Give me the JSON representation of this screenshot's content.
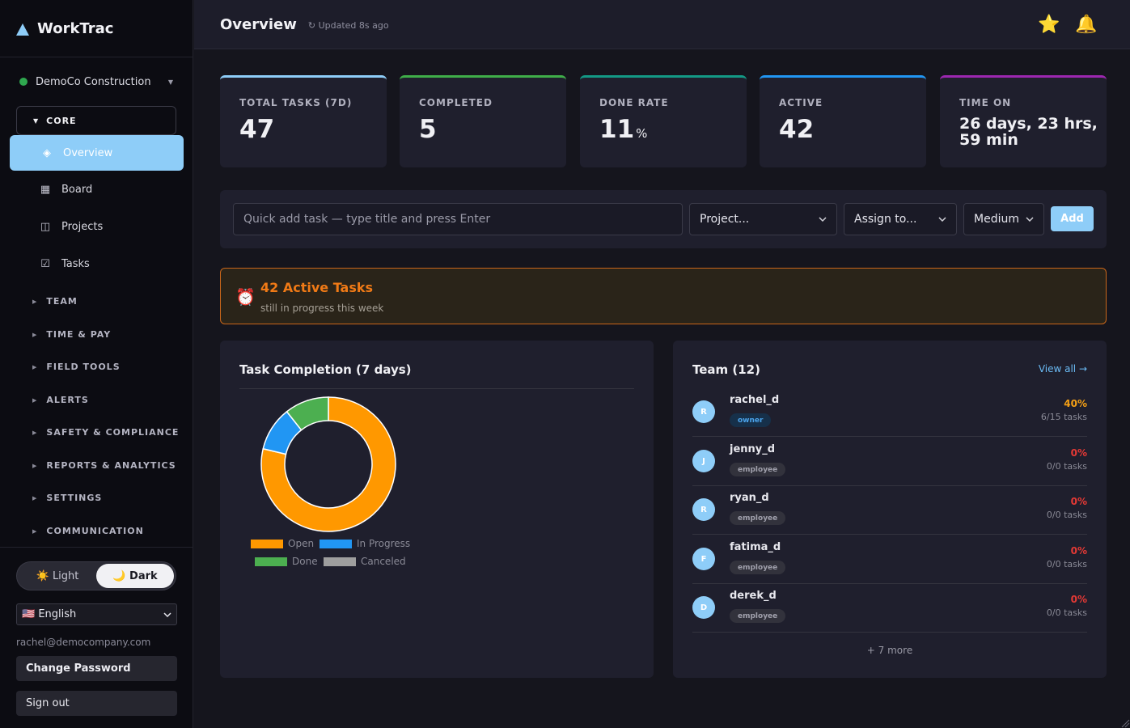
{
  "brand": {
    "name": "WorkTrac"
  },
  "org": {
    "name": "DemoCo Construction",
    "status_color": "#2fa84f"
  },
  "nav": {
    "core_label": "CORE",
    "items": [
      {
        "label": "Overview",
        "icon": "diamond-icon",
        "active": true
      },
      {
        "label": "Board",
        "icon": "grid-icon"
      },
      {
        "label": "Projects",
        "icon": "columns-icon"
      },
      {
        "label": "Tasks",
        "icon": "checkbox-icon"
      }
    ],
    "groups": [
      "TEAM",
      "TIME & PAY",
      "FIELD TOOLS",
      "ALERTS",
      "SAFETY & COMPLIANCE",
      "REPORTS & ANALYTICS",
      "SETTINGS",
      "COMMUNICATION"
    ]
  },
  "theme": {
    "light_label": "Light",
    "dark_label": "Dark",
    "selected": "Dark"
  },
  "language": {
    "selected": "English",
    "flag": "🇺🇸"
  },
  "user": {
    "email": "rachel@democompany.com"
  },
  "account": {
    "change_password": "Change Password",
    "sign_out": "Sign out"
  },
  "header": {
    "title": "Overview",
    "updated": "↻ Updated 8s ago"
  },
  "stats": [
    {
      "label": "TOTAL TASKS (7D)",
      "value": "47",
      "color": "#8ecdf8"
    },
    {
      "label": "COMPLETED",
      "value": "5",
      "color": "#3fae49"
    },
    {
      "label": "DONE RATE",
      "value": "11",
      "unit": "%",
      "color": "#139985"
    },
    {
      "label": "ACTIVE",
      "value": "42",
      "color": "#2196f3"
    },
    {
      "label": "TIME ON",
      "value": "26 days, 23 hrs, 59 min",
      "color": "#9c27b0"
    }
  ],
  "quick_add": {
    "placeholder": "Quick add task — type title and press Enter",
    "project": "Project...",
    "assign": "Assign to...",
    "priority": "Medium",
    "add_label": "Add"
  },
  "alert": {
    "title": "42 Active Tasks",
    "subtitle": "still in progress this week"
  },
  "chart_data": {
    "type": "pie",
    "title": "Task Completion (7 days)",
    "categories": [
      "Open",
      "In Progress",
      "Done",
      "Canceled"
    ],
    "values": [
      37,
      5,
      5,
      0
    ],
    "colors": [
      "#ff9800",
      "#2196f3",
      "#4caf50",
      "#9e9e9e"
    ],
    "legend": "bottom"
  },
  "team": {
    "title": "Team (12)",
    "view_all": "View all →",
    "members": [
      {
        "initial": "R",
        "name": "rachel_d",
        "role": "owner",
        "pct": "40%",
        "tasks": "6/15 tasks",
        "pct_color": "#f5a015"
      },
      {
        "initial": "J",
        "name": "jenny_d",
        "role": "employee",
        "pct": "0%",
        "tasks": "0/0 tasks",
        "pct_color": "#e53935"
      },
      {
        "initial": "R",
        "name": "ryan_d",
        "role": "employee",
        "pct": "0%",
        "tasks": "0/0 tasks",
        "pct_color": "#e53935"
      },
      {
        "initial": "F",
        "name": "fatima_d",
        "role": "employee",
        "pct": "0%",
        "tasks": "0/0 tasks",
        "pct_color": "#e53935"
      },
      {
        "initial": "D",
        "name": "derek_d",
        "role": "employee",
        "pct": "0%",
        "tasks": "0/0 tasks",
        "pct_color": "#e53935"
      }
    ],
    "more": "+ 7 more"
  }
}
